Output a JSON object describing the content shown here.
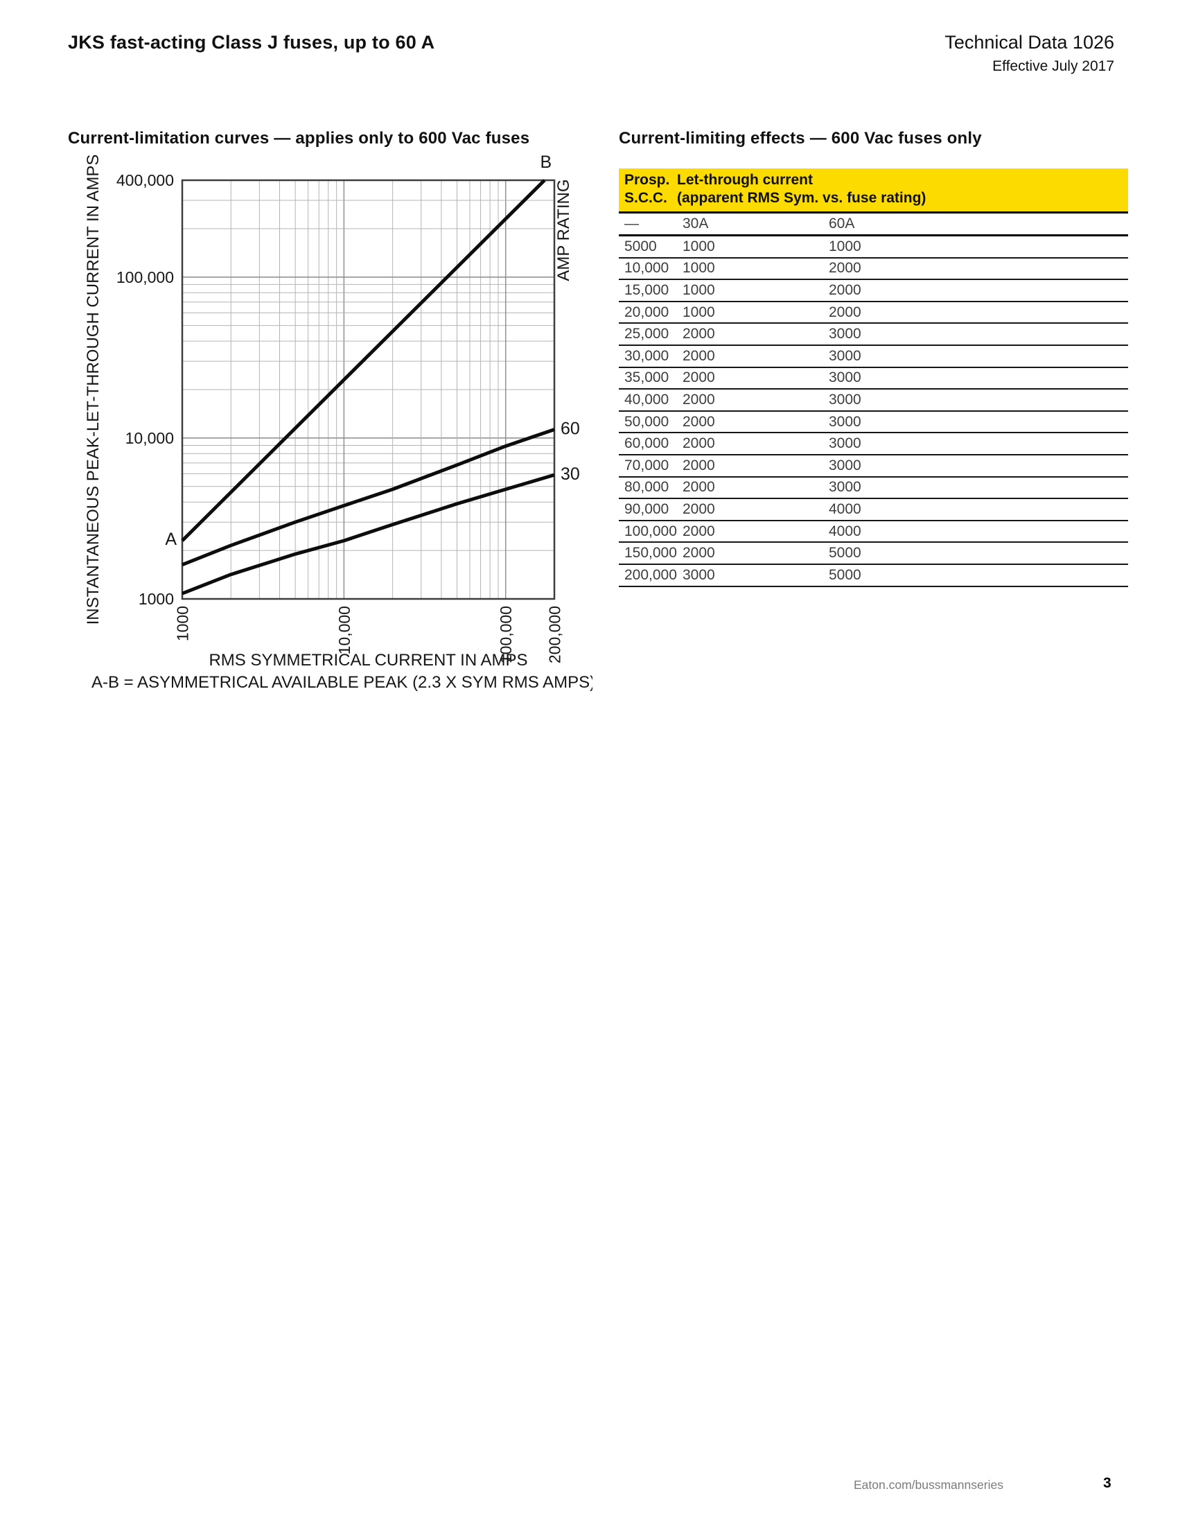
{
  "page": {
    "title": "JKS fast-acting Class J fuses, up to 60 A",
    "doc_ref": "Technical Data 1026",
    "effective": "Effective July 2017",
    "footer_link": "Eaton.com/bussmannseries",
    "page_number": "3"
  },
  "chart": {
    "title": "Current-limitation curves —  applies only to 600 Vac fuses"
  },
  "chart_data": {
    "type": "line",
    "title": "Current-limitation curves — applies only to 600 Vac fuses",
    "x_axis": {
      "label": "RMS SYMMETRICAL CURRENT IN AMPS",
      "scale": "log",
      "min": 1000,
      "max": 200000,
      "ticks": [
        {
          "v": 1000,
          "t": "1000"
        },
        {
          "v": 10000,
          "t": "10,000"
        },
        {
          "v": 100000,
          "t": "100,000"
        },
        {
          "v": 200000,
          "t": "200,000"
        }
      ]
    },
    "y_axis": {
      "label": "INSTANTANEOUS PEAK-LET-THROUGH CURRENT IN AMPS",
      "scale": "log",
      "min": 1000,
      "max": 400000,
      "ticks": [
        {
          "v": 1000,
          "t": "1000"
        },
        {
          "v": 10000,
          "t": "10,000"
        },
        {
          "v": 100000,
          "t": "100,000"
        },
        {
          "v": 400000,
          "t": "400,000"
        }
      ]
    },
    "right_axis_label": "AMP RATING",
    "caption": "A-B = ASYMMETRICAL AVAILABLE PEAK (2.3 X SYM RMS AMPS)",
    "grid": "log-minor-both",
    "series": [
      {
        "name": "asymmetrical-available-peak",
        "start_label": "A",
        "end_label": "B",
        "points": [
          [
            1000,
            2300
          ],
          [
            173900,
            400000
          ]
        ]
      },
      {
        "name": "60A-fuse",
        "label": "60",
        "points": [
          [
            1000,
            1630
          ],
          [
            2000,
            2150
          ],
          [
            5000,
            3000
          ],
          [
            10000,
            3800
          ],
          [
            20000,
            4800
          ],
          [
            50000,
            6800
          ],
          [
            100000,
            8900
          ],
          [
            200000,
            11300
          ]
        ]
      },
      {
        "name": "30A-fuse",
        "label": "30",
        "points": [
          [
            1000,
            1080
          ],
          [
            2000,
            1420
          ],
          [
            5000,
            1900
          ],
          [
            10000,
            2300
          ],
          [
            20000,
            2900
          ],
          [
            50000,
            3900
          ],
          [
            100000,
            4800
          ],
          [
            200000,
            5900
          ]
        ]
      }
    ]
  },
  "table": {
    "title": "Current-limiting effects —  600 Vac fuses only",
    "header": {
      "col1": [
        "Prosp.",
        "S.C.C."
      ],
      "col2": [
        "Let-through current",
        "(apparent RMS Sym. vs. fuse rating)"
      ]
    },
    "subheader": [
      "—",
      "30A",
      "60A"
    ],
    "rows": [
      [
        "5000",
        "1000",
        "1000"
      ],
      [
        "10,000",
        "1000",
        "2000"
      ],
      [
        "15,000",
        "1000",
        "2000"
      ],
      [
        "20,000",
        "1000",
        "2000"
      ],
      [
        "25,000",
        "2000",
        "3000"
      ],
      [
        "30,000",
        "2000",
        "3000"
      ],
      [
        "35,000",
        "2000",
        "3000"
      ],
      [
        "40,000",
        "2000",
        "3000"
      ],
      [
        "50,000",
        "2000",
        "3000"
      ],
      [
        "60,000",
        "2000",
        "3000"
      ],
      [
        "70,000",
        "2000",
        "3000"
      ],
      [
        "80,000",
        "2000",
        "3000"
      ],
      [
        "90,000",
        "2000",
        "4000"
      ],
      [
        "100,000",
        "2000",
        "4000"
      ],
      [
        "150,000",
        "2000",
        "5000"
      ],
      [
        "200,000",
        "3000",
        "5000"
      ]
    ]
  },
  "colors": {
    "accent_yellow": "#FCDC00",
    "curve_black": "#0d0d0d",
    "grid_minor": "#b4b4b4",
    "grid_major": "#8a8a8a"
  }
}
